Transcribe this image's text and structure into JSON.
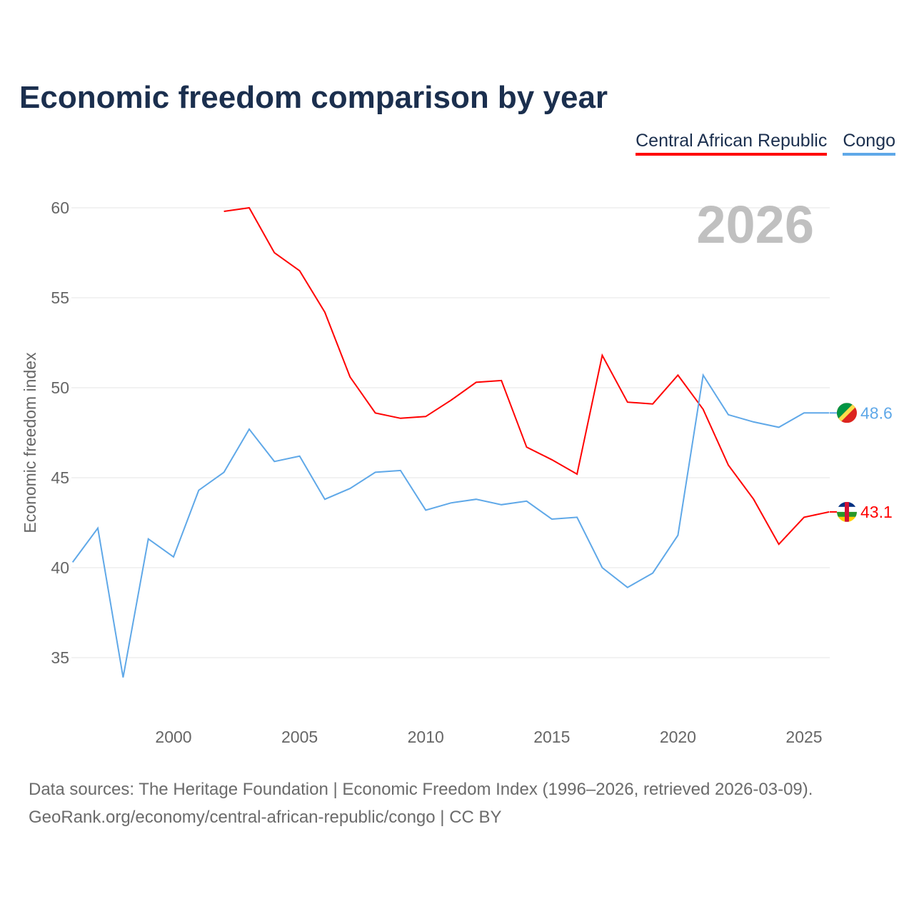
{
  "title": "Economic freedom comparison by year",
  "year_watermark": "2026",
  "footer": {
    "line1": "Data sources: The Heritage Foundation | Economic Freedom Index (1996–2026, retrieved 2026-03-09).",
    "line2": "GeoRank.org/economy/central-african-republic/congo | CC BY"
  },
  "chart_data": {
    "type": "line",
    "title": "Economic freedom comparison by year",
    "xlabel": "",
    "ylabel": "Economic freedom index",
    "xlim": [
      1996,
      2026
    ],
    "ylim": [
      32,
      62
    ],
    "xticks": [
      2000,
      2005,
      2010,
      2015,
      2020,
      2025
    ],
    "yticks": [
      35,
      40,
      45,
      50,
      55,
      60
    ],
    "grid": true,
    "legend_placement": "top-right",
    "series": [
      {
        "name": "Central African Republic",
        "color": "#ff0000",
        "end_label": "43.1",
        "x": [
          2002,
          2003,
          2004,
          2005,
          2006,
          2007,
          2008,
          2009,
          2010,
          2011,
          2012,
          2013,
          2014,
          2015,
          2016,
          2017,
          2018,
          2019,
          2020,
          2021,
          2022,
          2023,
          2024,
          2025,
          2026
        ],
        "values": [
          59.8,
          60.0,
          57.5,
          56.5,
          54.2,
          50.6,
          48.6,
          48.3,
          48.4,
          49.3,
          50.3,
          50.4,
          46.7,
          46.0,
          45.2,
          51.8,
          49.2,
          49.1,
          50.7,
          48.8,
          45.7,
          43.8,
          41.3,
          42.8,
          43.1
        ]
      },
      {
        "name": "Congo",
        "color": "#5fa8e8",
        "end_label": "48.6",
        "x": [
          1996,
          1997,
          1998,
          1999,
          2000,
          2001,
          2002,
          2003,
          2004,
          2005,
          2006,
          2007,
          2008,
          2009,
          2010,
          2011,
          2012,
          2013,
          2014,
          2015,
          2016,
          2017,
          2018,
          2019,
          2020,
          2021,
          2022,
          2023,
          2024,
          2025,
          2026
        ],
        "values": [
          40.3,
          42.2,
          33.9,
          41.6,
          40.6,
          44.3,
          45.3,
          47.7,
          45.9,
          46.2,
          43.8,
          44.4,
          45.3,
          45.4,
          43.2,
          43.6,
          43.8,
          43.5,
          43.7,
          42.7,
          42.8,
          40.0,
          38.9,
          39.7,
          41.8,
          50.7,
          48.5,
          48.1,
          47.8,
          48.6,
          48.6
        ]
      }
    ]
  }
}
